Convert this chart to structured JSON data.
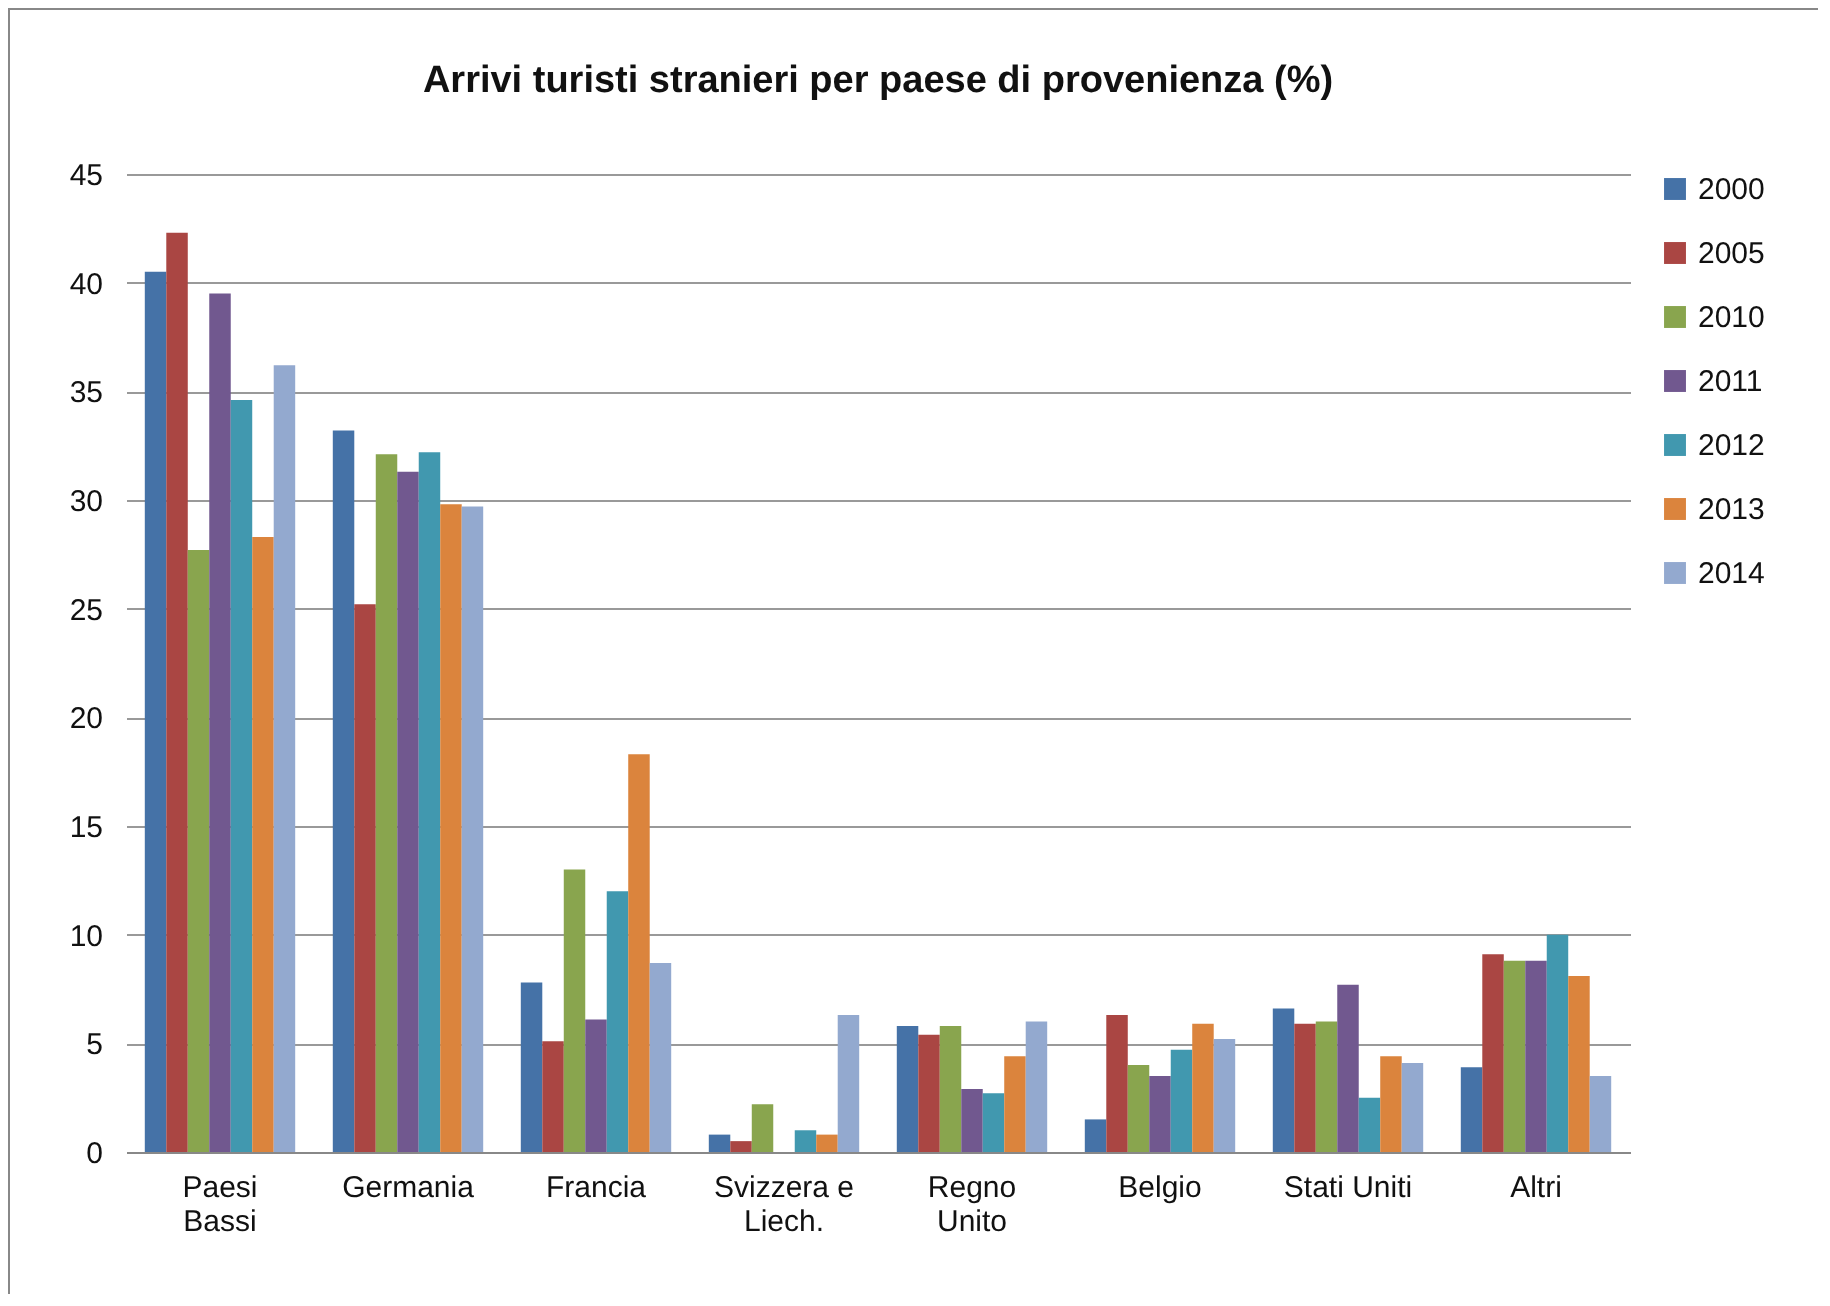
{
  "chart_data": {
    "type": "bar",
    "title": "Arrivi turisti stranieri per paese di provenienza (%)",
    "categories": [
      "Paesi\nBassi",
      "Germania",
      "Francia",
      "Svizzera e\nLiech.",
      "Regno\nUnito",
      "Belgio",
      "Stati Uniti",
      "Altri"
    ],
    "series": [
      {
        "name": "2000",
        "color": "#4572a7",
        "values": [
          40.5,
          33.2,
          7.8,
          0.8,
          5.8,
          1.5,
          6.6,
          3.9
        ]
      },
      {
        "name": "2005",
        "color": "#aa4643",
        "values": [
          42.3,
          25.2,
          5.1,
          0.5,
          5.4,
          6.3,
          5.9,
          9.1
        ]
      },
      {
        "name": "2010",
        "color": "#89a54e",
        "values": [
          27.7,
          32.1,
          13.0,
          2.2,
          5.8,
          4.0,
          6.0,
          8.8
        ]
      },
      {
        "name": "2011",
        "color": "#71588f",
        "values": [
          39.5,
          31.3,
          6.1,
          null,
          2.9,
          3.5,
          7.7,
          8.8
        ]
      },
      {
        "name": "2012",
        "color": "#4198af",
        "values": [
          34.6,
          32.2,
          12.0,
          1.0,
          2.7,
          4.7,
          2.5,
          10.0
        ]
      },
      {
        "name": "2013",
        "color": "#db843d",
        "values": [
          28.3,
          29.8,
          18.3,
          0.8,
          4.4,
          5.9,
          4.4,
          8.1
        ]
      },
      {
        "name": "2014",
        "color": "#93a9cf",
        "values": [
          36.2,
          29.7,
          8.7,
          6.3,
          6.0,
          5.2,
          4.1,
          3.5
        ]
      }
    ],
    "ylim": [
      0,
      45
    ],
    "yticks": [
      0,
      5,
      10,
      15,
      20,
      25,
      30,
      35,
      40,
      45
    ],
    "grid": "y",
    "legend": "right"
  }
}
